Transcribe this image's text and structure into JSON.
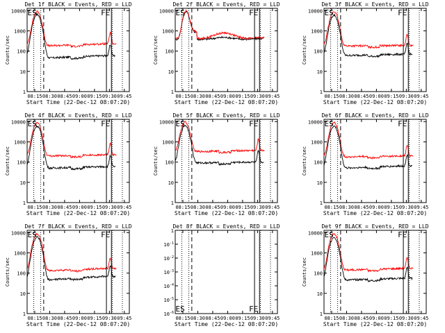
{
  "chart_data": [
    {
      "type": "line",
      "title": "Det 1f BLACK = Events, RED = LLD",
      "xlabel": "Start Time (22-Dec-12 08:07:20)",
      "ylabel": "Counts/sec",
      "xtick_labels": [
        "08:15",
        "08:30",
        "08:45",
        "09:00",
        "09:15",
        "09:30",
        "09:45"
      ],
      "ytick_labels": [
        "1",
        "10",
        "100",
        "1000",
        "10000"
      ],
      "y_scale": "log",
      "ylim": [
        1,
        13000
      ],
      "series": [
        {
          "name": "BLACK",
          "color": "#000000",
          "profile": "gps",
          "base": 45,
          "peak": 6500,
          "end_base": 60,
          "hump": 0
        },
        {
          "name": "RED",
          "color": "#ff0000",
          "profile": "gps",
          "base": 180,
          "peak": 9000,
          "end_base": 230,
          "hump": 0
        }
      ],
      "markers": {
        "dotted": [
          "08:14",
          "08:21",
          "09:33",
          "09:43"
        ],
        "dashed": [
          "08:24"
        ],
        "solid": [
          "09:27",
          "09:32"
        ]
      },
      "corner_labels": {
        "left": "ES",
        "right": "FE"
      }
    },
    {
      "type": "line",
      "title": "Det 2f BLACK = Events, RED = LLD",
      "xlabel": "Start Time (22-Dec-12 08:07:20)",
      "ylabel": "Counts/sec",
      "xtick_labels": [
        "08:15",
        "08:30",
        "08:45",
        "09:00",
        "09:15",
        "09:30",
        "09:45"
      ],
      "ytick_labels": [
        "1",
        "10",
        "100",
        "1000",
        "10000"
      ],
      "y_scale": "log",
      "ylim": [
        1,
        13000
      ],
      "series": [
        {
          "name": "BLACK",
          "color": "#000000",
          "profile": "flat",
          "base": 380,
          "peak": 9000,
          "end_base": 420,
          "hump": 0
        },
        {
          "name": "RED",
          "color": "#ff0000",
          "profile": "flat",
          "base": 420,
          "peak": 9500,
          "end_base": 470,
          "hump": 1
        }
      ],
      "markers": {
        "dotted": [
          "08:14",
          "08:21",
          "09:33",
          "09:43"
        ],
        "dashed": [
          "08:24"
        ],
        "solid": [
          "09:27",
          "09:32"
        ]
      },
      "corner_labels": {
        "left": "ES",
        "right": "FE"
      }
    },
    {
      "type": "line",
      "title": "Det 3f BLACK = Events, RED = LLD",
      "xlabel": "Start Time (22-Dec-12 08:07:20)",
      "ylabel": "Counts/sec",
      "xtick_labels": [
        "08:15",
        "08:30",
        "08:45",
        "09:00",
        "09:15",
        "09:30",
        "09:45"
      ],
      "ytick_labels": [
        "1",
        "10",
        "100",
        "1000",
        "10000"
      ],
      "y_scale": "log",
      "ylim": [
        1,
        13000
      ],
      "series": [
        {
          "name": "BLACK",
          "color": "#000000",
          "profile": "gps",
          "base": 60,
          "peak": 6000,
          "end_base": 70,
          "hump": 0
        },
        {
          "name": "RED",
          "color": "#ff0000",
          "profile": "gps",
          "base": 180,
          "peak": 9000,
          "end_base": 190,
          "hump": 0
        }
      ],
      "markers": {
        "dotted": [
          "08:14",
          "08:21",
          "09:33",
          "09:43"
        ],
        "dashed": [
          "08:24"
        ],
        "solid": [
          "09:27",
          "09:32"
        ]
      },
      "corner_labels": {
        "left": "ES",
        "right": "FE"
      }
    },
    {
      "type": "line",
      "title": "Det 4f BLACK = Events, RED = LLD",
      "xlabel": "Start Time (22-Dec-12 08:07:20)",
      "ylabel": "Counts/sec",
      "xtick_labels": [
        "08:15",
        "08:30",
        "08:45",
        "09:00",
        "09:15",
        "09:30",
        "09:45"
      ],
      "ytick_labels": [
        "1",
        "10",
        "100",
        "1000",
        "10000"
      ],
      "y_scale": "log",
      "ylim": [
        1,
        13000
      ],
      "series": [
        {
          "name": "BLACK",
          "color": "#000000",
          "profile": "gps",
          "base": 50,
          "peak": 6000,
          "end_base": 60,
          "hump": 0
        },
        {
          "name": "RED",
          "color": "#ff0000",
          "profile": "gps",
          "base": 200,
          "peak": 9000,
          "end_base": 230,
          "hump": 0
        }
      ],
      "markers": {
        "dotted": [
          "08:14",
          "08:21",
          "09:33",
          "09:43"
        ],
        "dashed": [
          "08:24"
        ],
        "solid": [
          "09:27",
          "09:32"
        ]
      },
      "corner_labels": {
        "left": "ES",
        "right": "FE"
      }
    },
    {
      "type": "line",
      "title": "Det 5f BLACK = Events, RED = LLD",
      "xlabel": "Start Time (22-Dec-12 08:07:20)",
      "ylabel": "Counts/sec",
      "xtick_labels": [
        "08:15",
        "08:30",
        "08:45",
        "09:00",
        "09:15",
        "09:30",
        "09:45"
      ],
      "ytick_labels": [
        "1",
        "10",
        "100",
        "1000",
        "10000"
      ],
      "y_scale": "log",
      "ylim": [
        1,
        13000
      ],
      "series": [
        {
          "name": "BLACK",
          "color": "#000000",
          "profile": "gps",
          "base": 90,
          "peak": 6500,
          "end_base": 100,
          "hump": 0
        },
        {
          "name": "RED",
          "color": "#ff0000",
          "profile": "gps",
          "base": 330,
          "peak": 9500,
          "end_base": 380,
          "hump": 0
        }
      ],
      "markers": {
        "dotted": [
          "08:14",
          "08:21",
          "09:33",
          "09:43"
        ],
        "dashed": [
          "08:24"
        ],
        "solid": [
          "09:27",
          "09:32"
        ]
      },
      "corner_labels": {
        "left": "ES",
        "right": "FE"
      }
    },
    {
      "type": "line",
      "title": "Det 6f BLACK = Events, RED = LLD",
      "xlabel": "Start Time (22-Dec-12 08:07:20)",
      "ylabel": "Counts/sec",
      "xtick_labels": [
        "08:15",
        "08:30",
        "08:45",
        "09:00",
        "09:15",
        "09:30",
        "09:45"
      ],
      "ytick_labels": [
        "1",
        "10",
        "100",
        "1000",
        "10000"
      ],
      "y_scale": "log",
      "ylim": [
        1,
        13000
      ],
      "series": [
        {
          "name": "BLACK",
          "color": "#000000",
          "profile": "gps",
          "base": 50,
          "peak": 6000,
          "end_base": 65,
          "hump": 0
        },
        {
          "name": "RED",
          "color": "#ff0000",
          "profile": "gps",
          "base": 180,
          "peak": 9000,
          "end_base": 200,
          "hump": 0
        }
      ],
      "markers": {
        "dotted": [
          "08:14",
          "08:21",
          "09:33",
          "09:43"
        ],
        "dashed": [
          "08:24"
        ],
        "solid": [
          "09:27",
          "09:32"
        ]
      },
      "corner_labels": {
        "left": "ES",
        "right": "FE"
      }
    },
    {
      "type": "line",
      "title": "Det 7f BLACK = Events, RED = LLD",
      "xlabel": "Start Time (22-Dec-12 08:07:20)",
      "ylabel": "Counts/sec",
      "xtick_labels": [
        "08:15",
        "08:30",
        "08:45",
        "09:00",
        "09:15",
        "09:30",
        "09:45"
      ],
      "ytick_labels": [
        "1",
        "10",
        "100",
        "1000",
        "10000"
      ],
      "y_scale": "log",
      "ylim": [
        1,
        13000
      ],
      "series": [
        {
          "name": "BLACK",
          "color": "#000000",
          "profile": "gps",
          "base": 45,
          "peak": 6000,
          "end_base": 70,
          "hump": 0
        },
        {
          "name": "RED",
          "color": "#ff0000",
          "profile": "gps",
          "base": 130,
          "peak": 9000,
          "end_base": 170,
          "hump": 0
        }
      ],
      "markers": {
        "dotted": [
          "08:14",
          "08:21",
          "09:33",
          "09:43"
        ],
        "dashed": [
          "08:24"
        ],
        "solid": [
          "09:27",
          "09:32"
        ]
      },
      "corner_labels": {
        "left": "ES",
        "right": "FE"
      }
    },
    {
      "type": "line",
      "title": "Det 8f BLACK = Events, RED = LLD",
      "xlabel": "Start Time (22-Dec-12 08:07:20)",
      "ylabel": "",
      "xtick_labels": [
        "08:15",
        "08:30",
        "08:45",
        "09:00",
        "09:15",
        "09:30",
        "09:45"
      ],
      "ytick_labels": [
        "1",
        "10^-1",
        "10^-2",
        "10^-3",
        "10^-4",
        "10^-5",
        "10^-6"
      ],
      "y_scale": "log",
      "ylim": [
        1e-06,
        1
      ],
      "series": [],
      "markers": {
        "dotted": [
          "08:14",
          "08:21",
          "09:33",
          "09:43"
        ],
        "dashed": [
          "08:24"
        ],
        "solid": [
          "09:27",
          "09:32"
        ]
      },
      "corner_labels": {
        "left": "ES",
        "right": "FE"
      }
    },
    {
      "type": "line",
      "title": "Det 9f BLACK = Events, RED = LLD",
      "xlabel": "Start Time (22-Dec-12 08:07:20)",
      "ylabel": "Counts/sec",
      "xtick_labels": [
        "08:15",
        "08:30",
        "08:45",
        "09:00",
        "09:15",
        "09:30",
        "09:45"
      ],
      "ytick_labels": [
        "1",
        "10",
        "100",
        "1000",
        "10000"
      ],
      "y_scale": "log",
      "ylim": [
        1,
        13000
      ],
      "series": [
        {
          "name": "BLACK",
          "color": "#000000",
          "profile": "gps",
          "base": 45,
          "peak": 6000,
          "end_base": 55,
          "hump": 0
        },
        {
          "name": "RED",
          "color": "#ff0000",
          "profile": "gps",
          "base": 140,
          "peak": 9000,
          "end_base": 170,
          "hump": 0
        }
      ],
      "markers": {
        "dotted": [
          "08:14",
          "08:21",
          "09:33",
          "09:43"
        ],
        "dashed": [
          "08:24"
        ],
        "solid": [
          "09:27",
          "09:32"
        ]
      },
      "corner_labels": {
        "left": "ES",
        "right": "FE"
      }
    }
  ]
}
